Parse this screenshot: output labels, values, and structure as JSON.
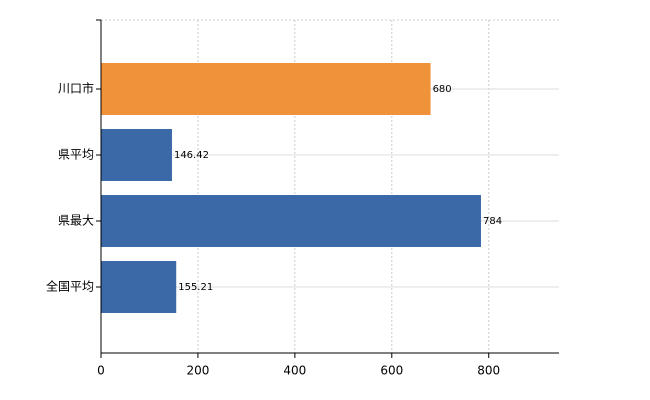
{
  "chart_data": {
    "type": "bar",
    "orientation": "horizontal",
    "categories": [
      "川口市",
      "県平均",
      "県最大",
      "全国平均"
    ],
    "values": [
      680,
      146.42,
      784,
      155.21
    ],
    "colors": [
      "#f0923a",
      "#3b68a6",
      "#3b68a6",
      "#3b68a6"
    ],
    "xlim": [
      0,
      945
    ],
    "xticks": [
      0,
      200,
      400,
      600,
      800
    ],
    "grid": true
  }
}
